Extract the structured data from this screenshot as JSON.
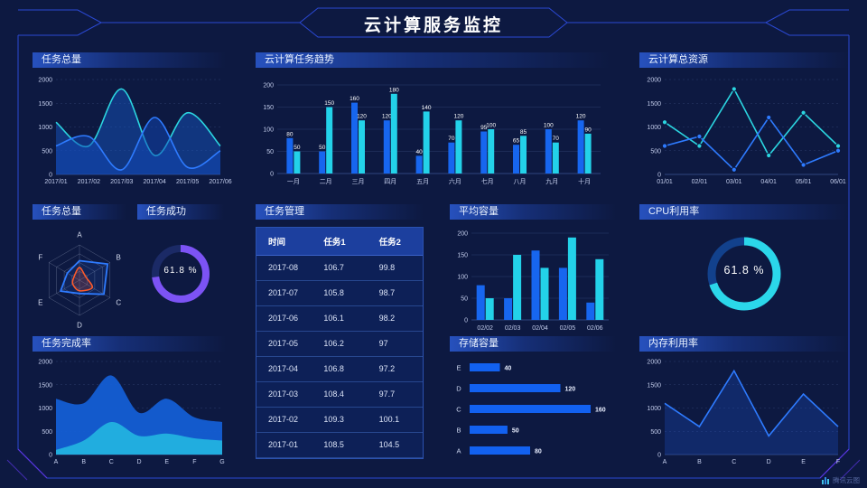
{
  "page": {
    "title": "云计算服务监控",
    "watermark": "腾讯云图"
  },
  "panels": {
    "taskTotalTop": {
      "title": "任务总量"
    },
    "taskTrend": {
      "title": "云计算任务趋势"
    },
    "totalResource": {
      "title": "云计算总资源"
    },
    "taskRadar": {
      "title": "任务总量"
    },
    "taskSuccess": {
      "title": "任务成功",
      "value": "61.8 %"
    },
    "taskManage": {
      "title": "任务管理"
    },
    "avgCapacity": {
      "title": "平均容量"
    },
    "cpuUsage": {
      "title": "CPU利用率",
      "value": "61.8 %"
    },
    "taskComplete": {
      "title": "任务完成率"
    },
    "storage": {
      "title": "存储容量"
    },
    "memory": {
      "title": "内存利用率"
    }
  },
  "table": {
    "headers": [
      "时间",
      "任务1",
      "任务2"
    ],
    "rows": [
      [
        "2017-08",
        "106.7",
        "99.8"
      ],
      [
        "2017-07",
        "105.8",
        "98.7"
      ],
      [
        "2017-06",
        "106.1",
        "98.2"
      ],
      [
        "2017-05",
        "106.2",
        "97"
      ],
      [
        "2017-04",
        "106.8",
        "97.2"
      ],
      [
        "2017-03",
        "108.4",
        "97.7"
      ],
      [
        "2017-02",
        "109.3",
        "100.1"
      ],
      [
        "2017-01",
        "108.5",
        "104.5"
      ]
    ]
  },
  "colors": {
    "background": "#0d1941",
    "bar_blue": "#1766ef",
    "bar_cyan": "#23d2e9",
    "line_blue": "#2e7bff",
    "line_cyan": "#2bd5e0",
    "donut_purple": "#7c53f4",
    "donut_cyan": "#2bd7ea",
    "radar_orange": "#ff5a2a",
    "frame_blue": "#2b49d4",
    "frame_purple": "#5a35e0"
  },
  "chart_data": [
    {
      "id": "taskTotalTop",
      "type": "area",
      "title": "任务总量",
      "smooth": true,
      "x": [
        "2017/01",
        "2017/02",
        "2017/03",
        "2017/04",
        "2017/05",
        "2017/06"
      ],
      "series": [
        {
          "name": "cyan",
          "values": [
            1100,
            600,
            1800,
            400,
            1300,
            600
          ]
        },
        {
          "name": "blue",
          "values": [
            600,
            800,
            100,
            1200,
            150,
            500
          ]
        }
      ],
      "ylim": [
        0,
        2000
      ],
      "yticks": [
        0,
        500,
        1000,
        1500,
        2000
      ],
      "grid": "dashed"
    },
    {
      "id": "taskTrend",
      "type": "bar",
      "title": "云计算任务趋势",
      "labels": true,
      "categories": [
        "一月",
        "二月",
        "三月",
        "四月",
        "五月",
        "六月",
        "七月",
        "八月",
        "九月",
        "十月"
      ],
      "series": [
        {
          "name": "blue",
          "values": [
            80,
            50,
            160,
            120,
            40,
            70,
            95,
            65,
            100,
            120
          ]
        },
        {
          "name": "cyan",
          "values": [
            50,
            150,
            120,
            180,
            140,
            120,
            100,
            85,
            70,
            90
          ]
        }
      ],
      "ylim": [
        0,
        200
      ],
      "yticks": [
        0,
        50,
        100,
        150,
        200
      ],
      "grid": "solid"
    },
    {
      "id": "totalResource",
      "type": "line",
      "title": "云计算总资源",
      "markers": true,
      "x": [
        "01/01",
        "02/01",
        "03/01",
        "04/01",
        "05/01",
        "06/01"
      ],
      "series": [
        {
          "name": "cyan",
          "values": [
            1100,
            600,
            1800,
            400,
            1300,
            600
          ]
        },
        {
          "name": "blue",
          "values": [
            600,
            800,
            100,
            1200,
            200,
            500
          ]
        }
      ],
      "ylim": [
        0,
        2000
      ],
      "yticks": [
        0,
        500,
        1000,
        1500,
        2000
      ],
      "grid": "dashed"
    },
    {
      "id": "taskRadar",
      "type": "radar",
      "title": "任务总量",
      "axes": [
        "A",
        "B",
        "C",
        "D",
        "E",
        "F"
      ],
      "series": [
        {
          "name": "blue",
          "values": [
            0.55,
            0.92,
            0.8,
            0.38,
            0.62,
            0.4
          ]
        },
        {
          "name": "orange",
          "values": [
            0.36,
            0.2,
            0.42,
            0.3,
            0.22,
            0.18
          ]
        }
      ]
    },
    {
      "id": "taskSuccess",
      "type": "donut",
      "title": "任务成功",
      "value": 61.8,
      "display": "61.8 %",
      "arc_pct": 73,
      "color": "#7c53f4",
      "track": "#1b2a66"
    },
    {
      "id": "avgCapacity",
      "type": "bar",
      "title": "平均容量",
      "labels": false,
      "categories": [
        "02/02",
        "02/03",
        "02/04",
        "02/05",
        "02/06"
      ],
      "series": [
        {
          "name": "blue",
          "values": [
            80,
            50,
            160,
            120,
            40
          ]
        },
        {
          "name": "cyan",
          "values": [
            50,
            150,
            120,
            190,
            140
          ]
        }
      ],
      "ylim": [
        0,
        200
      ],
      "yticks": [
        0,
        50,
        100,
        150,
        200
      ],
      "grid": "solid"
    },
    {
      "id": "cpuUsage",
      "type": "donut",
      "title": "CPU利用率",
      "value": 61.8,
      "display": "61.8 %",
      "arc_pct": 70,
      "color": "#2bd7ea",
      "track": "#12418c"
    },
    {
      "id": "taskComplete",
      "type": "stacked_area",
      "title": "任务完成率",
      "smooth": true,
      "x": [
        "A",
        "B",
        "C",
        "D",
        "E",
        "F",
        "G"
      ],
      "series": [
        {
          "name": "blue",
          "values": [
            1200,
            1100,
            1700,
            900,
            1200,
            800,
            700
          ]
        },
        {
          "name": "cyan",
          "values": [
            100,
            300,
            700,
            400,
            450,
            350,
            300
          ]
        }
      ],
      "ylim": [
        0,
        2000
      ],
      "yticks": [
        0,
        500,
        1000,
        1500,
        2000
      ],
      "grid": "dashed"
    },
    {
      "id": "storage",
      "type": "hbar",
      "title": "存储容量",
      "categories": [
        "E",
        "D",
        "C",
        "B",
        "A"
      ],
      "values": [
        40,
        120,
        160,
        50,
        80
      ],
      "xmax": 160
    },
    {
      "id": "memory",
      "type": "line_area",
      "title": "内存利用率",
      "x": [
        "A",
        "B",
        "C",
        "D",
        "E",
        "F"
      ],
      "series": [
        {
          "name": "blue",
          "values": [
            1100,
            600,
            1800,
            400,
            1300,
            600
          ]
        }
      ],
      "ylim": [
        0,
        2000
      ],
      "yticks": [
        0,
        500,
        1000,
        1500,
        2000
      ],
      "grid": "dashed"
    }
  ]
}
